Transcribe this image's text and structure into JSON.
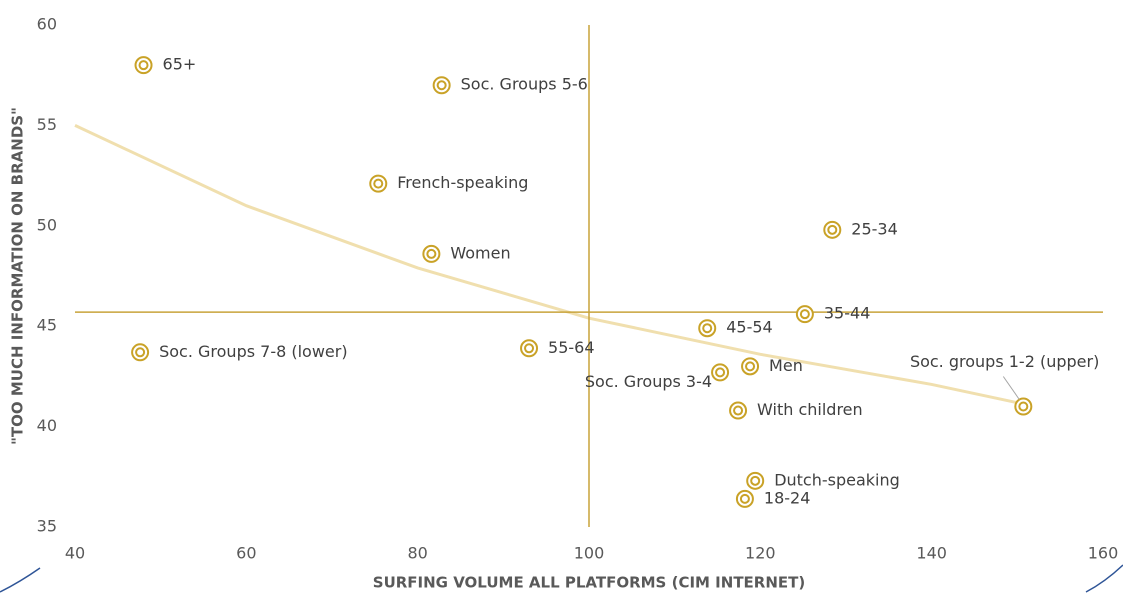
{
  "chart_data": {
    "type": "scatter",
    "x_label": "SURFING VOLUME ALL PLATFORMS (CIM INTERNET)",
    "y_label": "\"TOO MUCH INFORMATION ON BRANDS\"",
    "color": "#c9a227",
    "points": [
      {
        "label": "65+",
        "x": 48,
        "y": 58
      },
      {
        "label": "Soc. Groups 5-6",
        "x": 82.8,
        "y": 57
      },
      {
        "label": "French-speaking",
        "x": 75.4,
        "y": 52.1
      },
      {
        "label": "Women",
        "x": 81.6,
        "y": 48.6
      },
      {
        "label": "25-34",
        "x": 128.4,
        "y": 49.8
      },
      {
        "label": "35-44",
        "x": 125.2,
        "y": 45.6
      },
      {
        "label": "45-54",
        "x": 113.8,
        "y": 44.9
      },
      {
        "label": "Soc. Groups 7-8 (lower)",
        "x": 47.6,
        "y": 43.7
      },
      {
        "label": "55-64",
        "x": 93,
        "y": 43.9
      },
      {
        "label": "Men",
        "x": 118.8,
        "y": 43
      },
      {
        "label": "Soc. Groups 3-4",
        "x": 115.3,
        "y": 42.7
      },
      {
        "label": "Soc. groups 1-2 (upper)",
        "x": 150.7,
        "y": 41
      },
      {
        "label": "With children",
        "x": 117.4,
        "y": 40.8
      },
      {
        "label": "Dutch-speaking",
        "x": 119.4,
        "y": 37.3
      },
      {
        "label": "18-24",
        "x": 118.2,
        "y": 36.4
      }
    ],
    "trendline": {
      "color": "#f0dfae",
      "x": [
        40,
        60,
        80,
        100,
        120,
        140,
        151
      ],
      "y": [
        55,
        51,
        47.9,
        45.4,
        43.6,
        42.1,
        41.1
      ]
    },
    "reference_lines": {
      "color": "#c8a33a",
      "x": 100,
      "y": 45.7
    },
    "xlim": [
      40,
      160
    ],
    "xticks": [
      40,
      60,
      80,
      100,
      120,
      140,
      160
    ],
    "ylim": [
      35,
      60
    ],
    "yticks": [
      35,
      40,
      45,
      50,
      55,
      60
    ]
  }
}
